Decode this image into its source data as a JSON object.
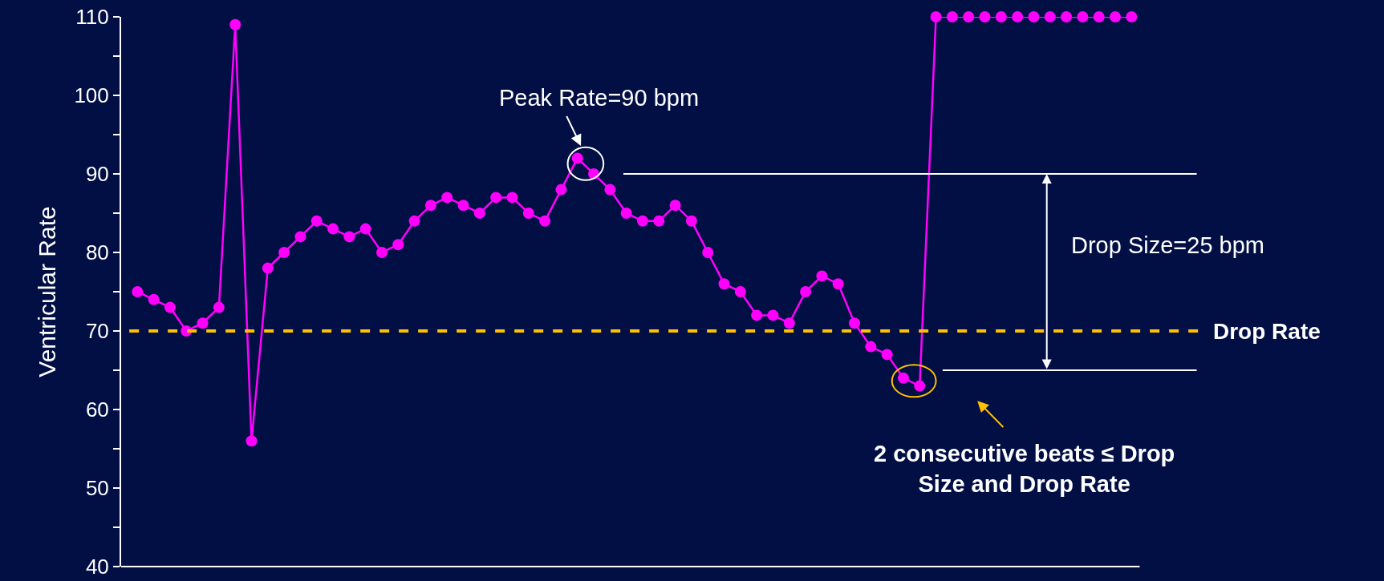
{
  "chart_data": {
    "type": "line",
    "ylabel": "Ventricular Rate",
    "categories": [
      null,
      null,
      null,
      null,
      null,
      null,
      null,
      null,
      null,
      null,
      null,
      null,
      null,
      null,
      null,
      null,
      null,
      null,
      null,
      null,
      null,
      null,
      null,
      null,
      null,
      null,
      null,
      null,
      null,
      null,
      null,
      null,
      null,
      null,
      null,
      null,
      null,
      null,
      null,
      null,
      null,
      null,
      null,
      null,
      null,
      null,
      null,
      null,
      null,
      null,
      null,
      null,
      null,
      null,
      null,
      null,
      null,
      null,
      null,
      null,
      null,
      null
    ],
    "series": [
      {
        "color": "#ff00ff",
        "values": [
          75,
          74,
          73,
          70,
          71,
          73,
          109,
          56,
          78,
          80,
          82,
          84,
          83,
          82,
          83,
          80,
          81,
          84,
          86,
          87,
          86,
          85,
          87,
          87,
          85,
          84,
          88,
          92,
          90,
          88,
          85,
          84,
          84,
          86,
          84,
          80,
          76,
          75,
          72,
          72,
          71,
          75,
          77,
          76,
          71,
          68,
          67,
          64,
          63,
          110,
          110,
          110,
          110,
          110,
          110,
          110,
          110,
          110,
          110,
          110,
          110,
          110
        ]
      }
    ],
    "ylim": [
      40,
      110
    ],
    "yticks": [
      40,
      {
        "value": 45,
        "label": null
      },
      50,
      {
        "value": 55,
        "label": null
      },
      60,
      {
        "value": 65,
        "label": null
      },
      70,
      {
        "value": 75,
        "label": null
      },
      80,
      {
        "value": 85,
        "label": null
      },
      90,
      {
        "value": 95,
        "label": null
      },
      100,
      {
        "value": 105,
        "label": null
      },
      110
    ],
    "marker": "circle",
    "line_style": "solid",
    "tick_labels": "y",
    "ref_lines": [
      {
        "axis": "y",
        "value": 70,
        "label": "Drop Rate",
        "color": "#ffc000",
        "line_style": "dashed"
      },
      {
        "axis": "y",
        "value": 90,
        "label": null,
        "color": "#ffffff",
        "line_style": "solid"
      },
      {
        "axis": "y",
        "value": 65,
        "label": null,
        "color": "#ffffff",
        "line_style": "solid"
      }
    ],
    "annotations": [
      "Peak Rate=90 bpm",
      "Drop Size=25 bpm",
      "2 consecutive beats ≤ Drop\nSize and Drop Rate"
    ]
  }
}
